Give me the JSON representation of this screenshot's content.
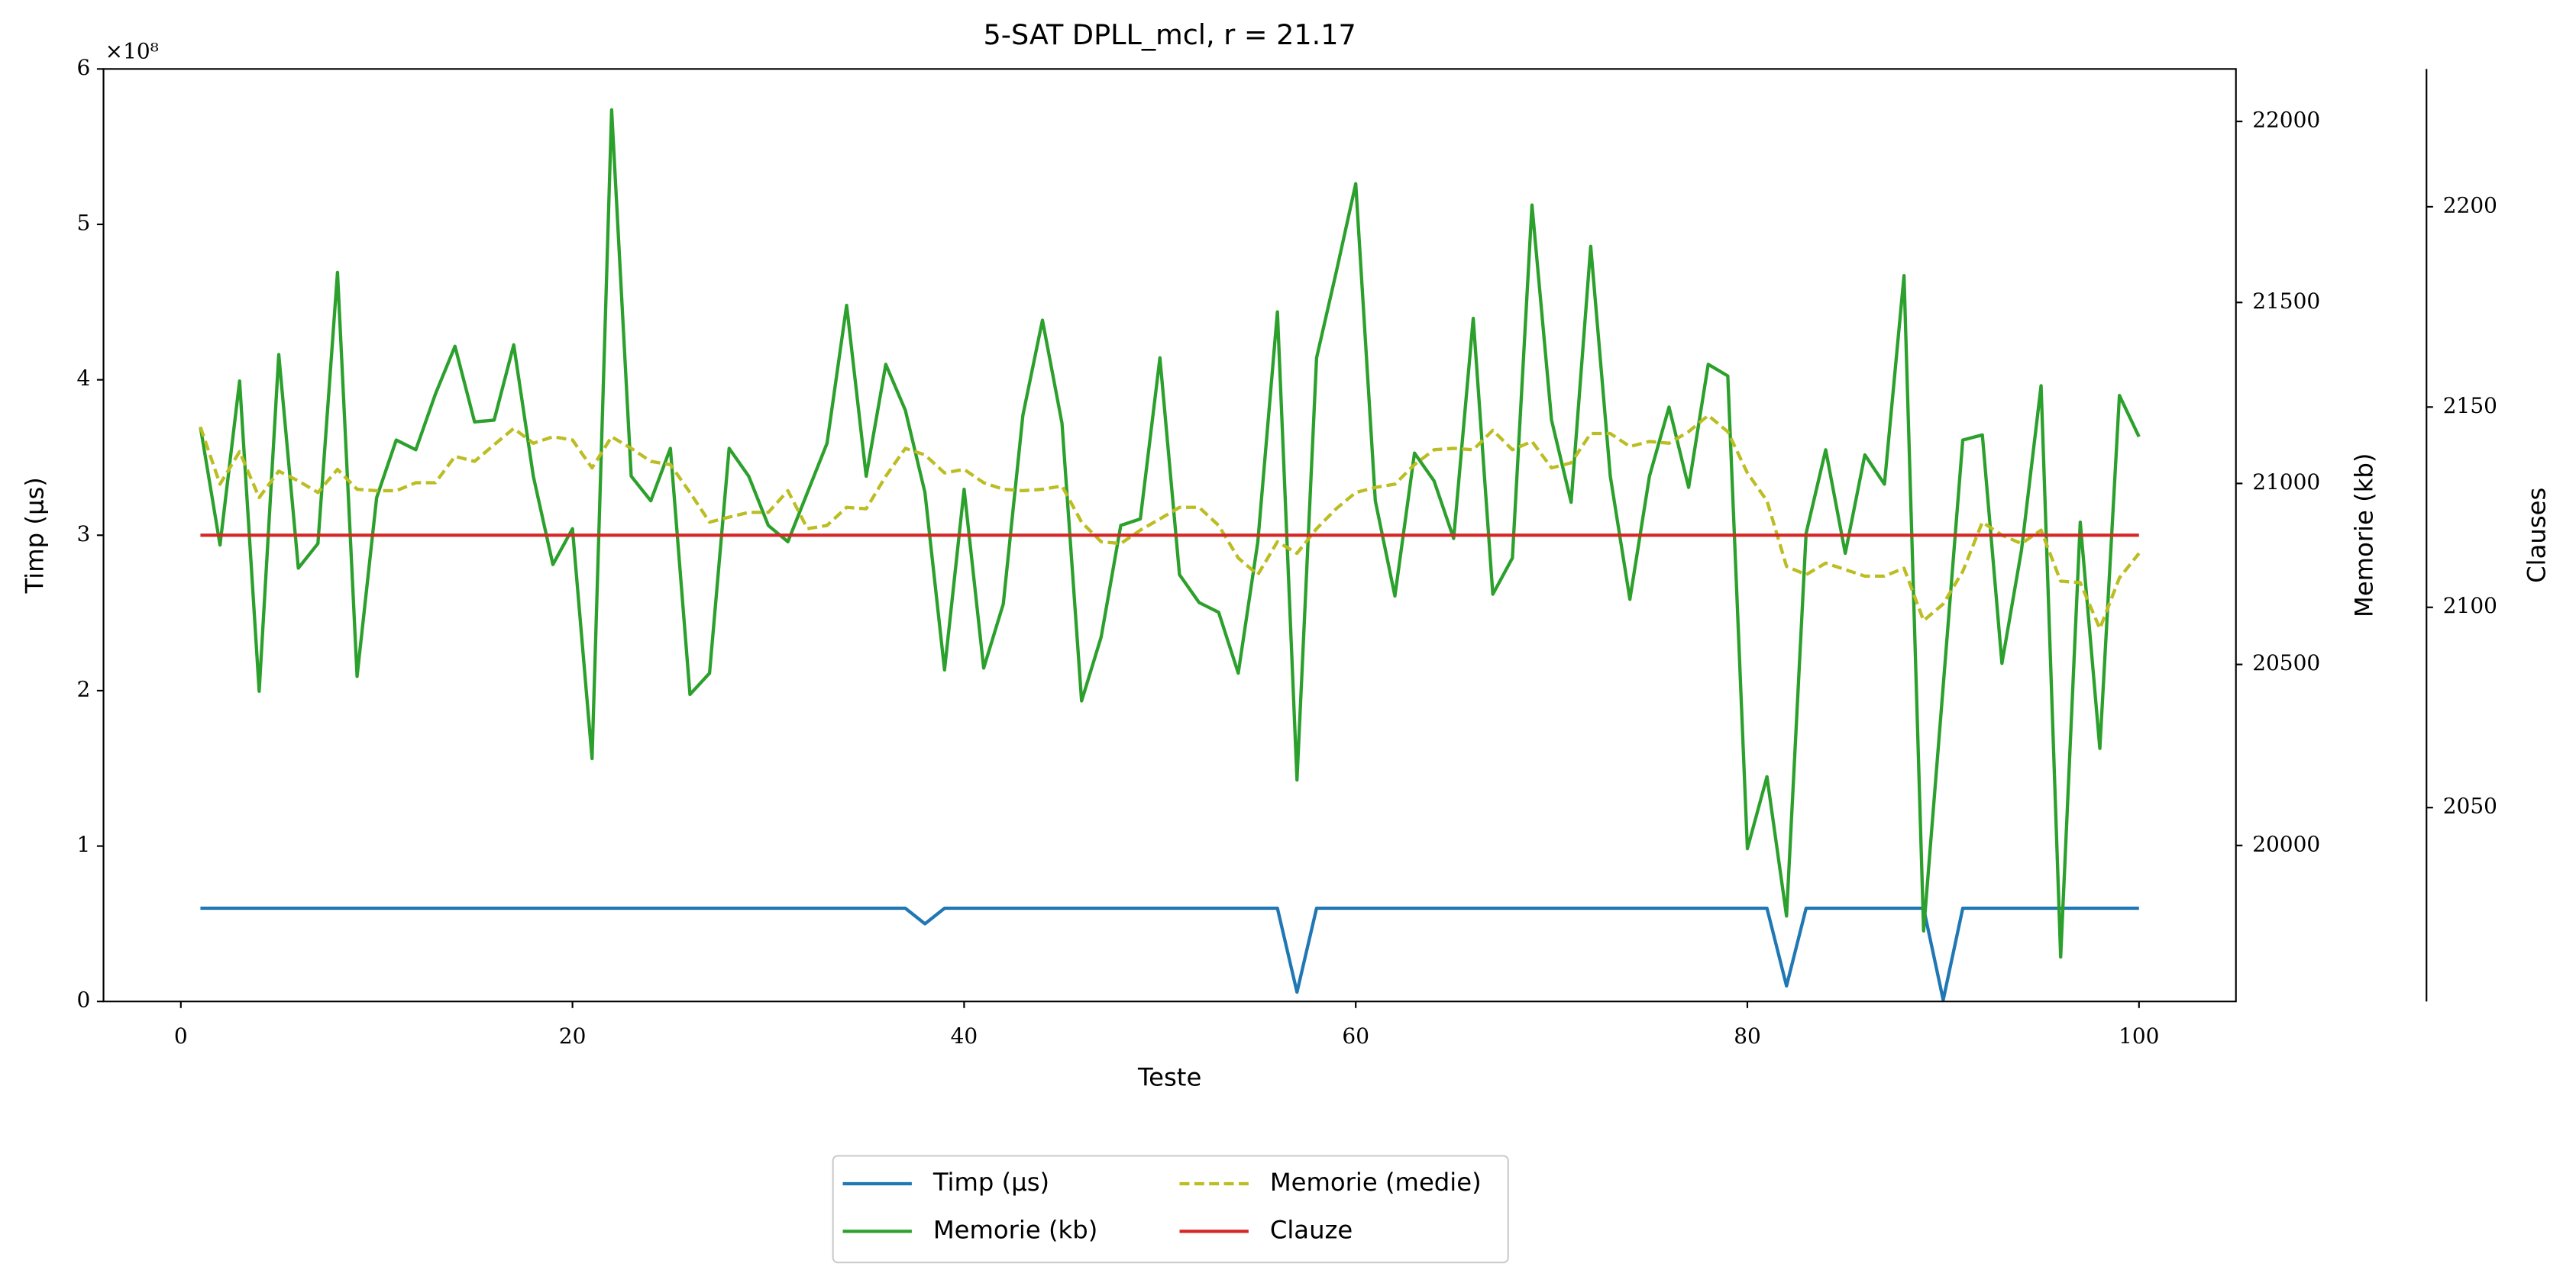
{
  "chart_data": {
    "type": "line",
    "title": "5-SAT DPLL_mcl, r = 21.17",
    "xlabel": "Teste",
    "ylabel": "Timp (μs)",
    "y2label": "Memorie (kb)",
    "y3label": "Clauses",
    "y_offset_label": "×10⁸",
    "x": [
      1,
      2,
      3,
      4,
      5,
      6,
      7,
      8,
      9,
      10,
      11,
      12,
      13,
      14,
      15,
      16,
      17,
      18,
      19,
      20,
      21,
      22,
      23,
      24,
      25,
      26,
      27,
      28,
      29,
      30,
      31,
      32,
      33,
      34,
      35,
      36,
      37,
      38,
      39,
      40,
      41,
      42,
      43,
      44,
      45,
      46,
      47,
      48,
      49,
      50,
      51,
      52,
      53,
      54,
      55,
      56,
      57,
      58,
      59,
      60,
      61,
      62,
      63,
      64,
      65,
      66,
      67,
      68,
      69,
      70,
      71,
      72,
      73,
      74,
      75,
      76,
      77,
      78,
      79,
      80,
      81,
      82,
      83,
      84,
      85,
      86,
      87,
      88,
      89,
      90,
      91,
      92,
      93,
      94,
      95,
      96,
      97,
      98,
      99,
      100
    ],
    "xlim": [
      -3.95,
      104.95
    ],
    "xticks": [
      0,
      20,
      40,
      60,
      80,
      100
    ],
    "ylim": [
      0,
      6
    ],
    "yticks": [
      0,
      1,
      2,
      3,
      4,
      5,
      6
    ],
    "y2lim": [
      19569,
      22145
    ],
    "y2ticks": [
      20000,
      20500,
      21000,
      21500,
      22000
    ],
    "y3lim": [
      2001.6,
      2234.4
    ],
    "y3ticks": [
      2050,
      2100,
      2150,
      2200
    ],
    "legend": "lower center",
    "series": [
      {
        "name": "Timp (μs)",
        "color": "#1f77b4",
        "axis": "y",
        "style": "solid",
        "values": [
          0.6,
          0.6,
          0.6,
          0.6,
          0.6,
          0.6,
          0.6,
          0.6,
          0.6,
          0.6,
          0.6,
          0.6,
          0.6,
          0.6,
          0.6,
          0.6,
          0.6,
          0.6,
          0.6,
          0.6,
          0.6,
          0.6,
          0.6,
          0.6,
          0.6,
          0.6,
          0.6,
          0.6,
          0.6,
          0.6,
          0.6,
          0.6,
          0.6,
          0.6,
          0.6,
          0.6,
          0.6,
          0.5,
          0.6,
          0.6,
          0.6,
          0.6,
          0.6,
          0.6,
          0.6,
          0.6,
          0.6,
          0.6,
          0.6,
          0.6,
          0.6,
          0.6,
          0.6,
          0.6,
          0.6,
          0.6,
          0.06,
          0.6,
          0.6,
          0.6,
          0.6,
          0.6,
          0.6,
          0.6,
          0.6,
          0.6,
          0.6,
          0.6,
          0.6,
          0.6,
          0.6,
          0.6,
          0.6,
          0.6,
          0.6,
          0.6,
          0.6,
          0.6,
          0.6,
          0.6,
          0.6,
          0.1,
          0.6,
          0.6,
          0.6,
          0.6,
          0.6,
          0.6,
          0.6,
          0.01,
          0.6,
          0.6,
          0.6,
          0.6,
          0.6,
          0.6,
          0.6,
          0.6,
          0.6,
          0.6
        ]
      },
      {
        "name": "Memorie (kb)",
        "color": "#2ca02c",
        "axis": "y2",
        "style": "solid",
        "values": [
          21156,
          20830,
          21283,
          20426,
          21356,
          20766,
          20834,
          21583,
          20467,
          20961,
          21120,
          21093,
          21247,
          21379,
          21170,
          21175,
          21383,
          21020,
          20776,
          20875,
          20240,
          22032,
          21020,
          20952,
          21097,
          20417,
          20476,
          21097,
          21020,
          20884,
          20839,
          20975,
          21111,
          21492,
          21020,
          21329,
          21202,
          20975,
          20485,
          20984,
          20490,
          20667,
          21188,
          21451,
          21166,
          20399,
          20576,
          20884,
          20902,
          21347,
          20748,
          20671,
          20644,
          20476,
          20839,
          21474,
          20181,
          21347,
          21583,
          21828,
          20952,
          20689,
          21084,
          21007,
          20848,
          21456,
          20694,
          20794,
          21769,
          21175,
          20948,
          21655,
          21020,
          20680,
          21020,
          21211,
          20989,
          21329,
          21297,
          19991,
          20190,
          19805,
          20862,
          21093,
          20807,
          21079,
          20998,
          21574,
          19764,
          20440,
          21120,
          21134,
          20503,
          20816,
          21270,
          19692,
          20893,
          20268,
          21243,
          21129
        ]
      },
      {
        "name": "Memorie (medie)",
        "color": "#bcbd22",
        "axis": "y2",
        "style": "dashed",
        "values": [
          21156,
          20998,
          21088,
          20961,
          21034,
          21007,
          20975,
          21039,
          20984,
          20980,
          20980,
          21002,
          21002,
          21075,
          21061,
          21107,
          21152,
          21111,
          21129,
          21120,
          21043,
          21129,
          21097,
          21061,
          21052,
          20975,
          20893,
          20907,
          20920,
          20920,
          20980,
          20875,
          20884,
          20934,
          20930,
          21020,
          21097,
          21079,
          21029,
          21039,
          21002,
          20984,
          20980,
          20984,
          20993,
          20893,
          20839,
          20834,
          20871,
          20902,
          20934,
          20934,
          20884,
          20794,
          20748,
          20839,
          20807,
          20875,
          20930,
          20975,
          20989,
          20998,
          21052,
          21093,
          21097,
          21093,
          21147,
          21093,
          21116,
          21043,
          21057,
          21138,
          21138,
          21102,
          21116,
          21111,
          21143,
          21188,
          21143,
          21029,
          20952,
          20771,
          20748,
          20780,
          20762,
          20744,
          20744,
          20766,
          20621,
          20667,
          20757,
          20893,
          20857,
          20834,
          20871,
          20730,
          20726,
          20599,
          20739,
          20807
        ]
      },
      {
        "name": "Clauze",
        "color": "#d62728",
        "axis": "y3",
        "style": "solid",
        "values": [
          2118,
          2118,
          2118,
          2118,
          2118,
          2118,
          2118,
          2118,
          2118,
          2118,
          2118,
          2118,
          2118,
          2118,
          2118,
          2118,
          2118,
          2118,
          2118,
          2118,
          2118,
          2118,
          2118,
          2118,
          2118,
          2118,
          2118,
          2118,
          2118,
          2118,
          2118,
          2118,
          2118,
          2118,
          2118,
          2118,
          2118,
          2118,
          2118,
          2118,
          2118,
          2118,
          2118,
          2118,
          2118,
          2118,
          2118,
          2118,
          2118,
          2118,
          2118,
          2118,
          2118,
          2118,
          2118,
          2118,
          2118,
          2118,
          2118,
          2118,
          2118,
          2118,
          2118,
          2118,
          2118,
          2118,
          2118,
          2118,
          2118,
          2118,
          2118,
          2118,
          2118,
          2118,
          2118,
          2118,
          2118,
          2118,
          2118,
          2118,
          2118,
          2118,
          2118,
          2118,
          2118,
          2118,
          2118,
          2118,
          2118,
          2118,
          2118,
          2118,
          2118,
          2118,
          2118,
          2118,
          2118,
          2118,
          2118,
          2118
        ]
      }
    ]
  }
}
